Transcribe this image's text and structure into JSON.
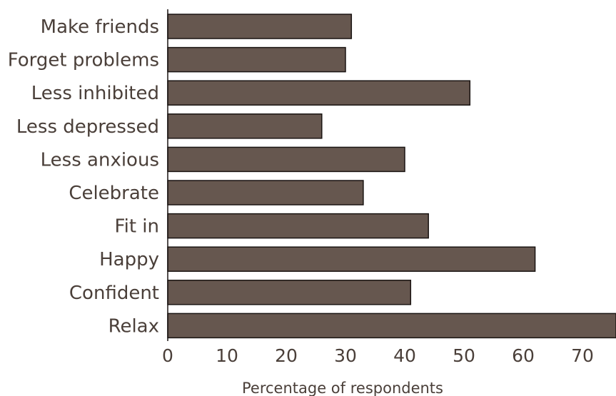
{
  "chart_data": {
    "type": "bar",
    "orientation": "horizontal",
    "categories": [
      "Make friends",
      "Forget problems",
      "Less inhibited",
      "Less depressed",
      "Less anxious",
      "Celebrate",
      "Fit in",
      "Happy",
      "Confident",
      "Relax"
    ],
    "values": [
      31,
      30,
      51,
      26,
      40,
      33,
      44,
      62,
      41,
      76
    ],
    "xlabel": "Percentage of respondents",
    "ylabel": "",
    "xlim": [
      0,
      76
    ],
    "xticks": [
      0,
      10,
      20,
      30,
      40,
      50,
      60,
      70
    ],
    "grid": false,
    "bar_color": "#66574f",
    "bar_edge_color": "#1a1412",
    "text_color": "#4a3f39"
  }
}
